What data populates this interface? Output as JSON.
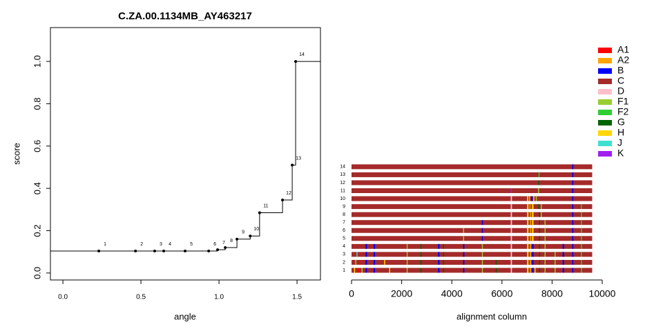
{
  "chart_data": [
    {
      "type": "step",
      "title": "C.ZA.00.1134MB_AY463217",
      "x_label": "angle",
      "y_label": "score",
      "x": [
        0.23,
        0.465,
        0.588,
        0.646,
        0.783,
        0.934,
        0.991,
        1.04,
        1.115,
        1.2,
        1.26,
        1.407,
        1.469,
        1.491
      ],
      "values": [
        0.104,
        0.104,
        0.104,
        0.104,
        0.104,
        0.104,
        0.11,
        0.12,
        0.16,
        0.175,
        0.285,
        0.345,
        0.51,
        1.0
      ],
      "point_labels": [
        "1",
        "2",
        "3",
        "4",
        "5",
        "6",
        "7",
        "8",
        "9",
        "10",
        "11",
        "12",
        "13",
        "14"
      ],
      "color": "#000000",
      "xlim": [
        -0.08,
        1.65
      ],
      "ylim": [
        -0.033,
        1.16
      ],
      "xticks": [
        {
          "value": 0,
          "label": "0.0"
        },
        0.5,
        {
          "value": 1,
          "label": "1.0"
        },
        1.5
      ],
      "yticks": [
        {
          "value": 0,
          "label": "0.0"
        },
        0.2,
        0.4,
        0.6,
        0.8,
        {
          "value": 1,
          "label": "1.0"
        }
      ]
    },
    {
      "type": "alignment",
      "x_label": "alignment column",
      "xlim": [
        0,
        10000
      ],
      "xticks": [
        0,
        2000,
        4000,
        6000,
        8000,
        10000
      ],
      "extent": [
        0,
        9600
      ],
      "base": "C",
      "legend": [
        {
          "name": "A1",
          "color": "#ff0000"
        },
        {
          "name": "A2",
          "color": "#ffa500"
        },
        {
          "name": "B",
          "color": "#0000ff"
        },
        {
          "name": "C",
          "color": "#a52a2a"
        },
        {
          "name": "D",
          "color": "#ffc0cb"
        },
        {
          "name": "F1",
          "color": "#9acd32"
        },
        {
          "name": "F2",
          "color": "#32cd32"
        },
        {
          "name": "G",
          "color": "#006400"
        },
        {
          "name": "H",
          "color": "#ffd700"
        },
        {
          "name": "J",
          "color": "#40e0d0"
        },
        {
          "name": "K",
          "color": "#a020f0"
        }
      ],
      "rows": [
        {
          "label": "1",
          "segments": [
            [
              100,
              140,
              "H"
            ],
            [
              250,
              290,
              "A1"
            ],
            [
              400,
              440,
              "F1"
            ],
            [
              560,
              620,
              "B"
            ],
            [
              880,
              940,
              "B"
            ],
            [
              1500,
              1540,
              "H"
            ],
            [
              2200,
              2240,
              "F1"
            ],
            [
              2750,
              2790,
              "G"
            ],
            [
              3450,
              3510,
              "B"
            ],
            [
              3650,
              3690,
              "G"
            ],
            [
              4450,
              4500,
              "B"
            ],
            [
              5200,
              5240,
              "F1"
            ],
            [
              5750,
              5790,
              "G"
            ],
            [
              6350,
              6400,
              "D"
            ],
            [
              7000,
              7060,
              "H"
            ],
            [
              7120,
              7160,
              "A2"
            ],
            [
              7200,
              7260,
              "B"
            ],
            [
              7300,
              7340,
              "H"
            ],
            [
              7480,
              7520,
              "G"
            ],
            [
              7700,
              7740,
              "F1"
            ],
            [
              8100,
              8140,
              "F1"
            ],
            [
              8420,
              8480,
              "B"
            ],
            [
              8800,
              8850,
              "B"
            ],
            [
              9150,
              9190,
              "F2"
            ]
          ]
        },
        {
          "label": "2",
          "segments": [
            [
              150,
              190,
              "F1"
            ],
            [
              300,
              340,
              "A1"
            ],
            [
              560,
              620,
              "B"
            ],
            [
              880,
              940,
              "B"
            ],
            [
              1300,
              1340,
              "H"
            ],
            [
              2200,
              2240,
              "F1"
            ],
            [
              2750,
              2790,
              "G"
            ],
            [
              3450,
              3510,
              "B"
            ],
            [
              3650,
              3690,
              "G"
            ],
            [
              4450,
              4500,
              "B"
            ],
            [
              5200,
              5240,
              "F1"
            ],
            [
              5750,
              5790,
              "G"
            ],
            [
              6350,
              6400,
              "D"
            ],
            [
              7000,
              7060,
              "H"
            ],
            [
              7120,
              7160,
              "A2"
            ],
            [
              7200,
              7260,
              "B"
            ],
            [
              7480,
              7520,
              "G"
            ],
            [
              7700,
              7740,
              "F1"
            ],
            [
              8100,
              8140,
              "F1"
            ],
            [
              8420,
              8480,
              "B"
            ],
            [
              8800,
              8850,
              "B"
            ],
            [
              9150,
              9190,
              "F2"
            ]
          ]
        },
        {
          "label": "3",
          "segments": [
            [
              200,
              240,
              "J"
            ],
            [
              560,
              620,
              "B"
            ],
            [
              880,
              940,
              "B"
            ],
            [
              2200,
              2240,
              "F1"
            ],
            [
              2750,
              2790,
              "G"
            ],
            [
              3450,
              3510,
              "B"
            ],
            [
              3650,
              3690,
              "G"
            ],
            [
              4450,
              4500,
              "B"
            ],
            [
              5200,
              5240,
              "F1"
            ],
            [
              6350,
              6400,
              "D"
            ],
            [
              7000,
              7060,
              "H"
            ],
            [
              7120,
              7160,
              "A2"
            ],
            [
              7200,
              7260,
              "B"
            ],
            [
              7480,
              7520,
              "G"
            ],
            [
              7700,
              7740,
              "F1"
            ],
            [
              8100,
              8140,
              "F1"
            ],
            [
              8420,
              8480,
              "B"
            ],
            [
              8800,
              8850,
              "B"
            ],
            [
              9150,
              9190,
              "F2"
            ]
          ]
        },
        {
          "label": "4",
          "segments": [
            [
              560,
              620,
              "B"
            ],
            [
              880,
              940,
              "B"
            ],
            [
              2200,
              2240,
              "F1"
            ],
            [
              2750,
              2790,
              "G"
            ],
            [
              3450,
              3510,
              "B"
            ],
            [
              3650,
              3690,
              "G"
            ],
            [
              4450,
              4500,
              "B"
            ],
            [
              5200,
              5240,
              "F1"
            ],
            [
              6350,
              6400,
              "D"
            ],
            [
              7000,
              7060,
              "H"
            ],
            [
              7120,
              7160,
              "A2"
            ],
            [
              7200,
              7260,
              "B"
            ],
            [
              7480,
              7520,
              "G"
            ],
            [
              7700,
              7740,
              "F1"
            ],
            [
              8420,
              8480,
              "B"
            ],
            [
              8800,
              8850,
              "B"
            ],
            [
              9150,
              9190,
              "F2"
            ]
          ]
        },
        {
          "label": "5",
          "segments": [
            [
              4450,
              4490,
              "F1"
            ],
            [
              5200,
              5240,
              "B"
            ],
            [
              6350,
              6400,
              "D"
            ],
            [
              7000,
              7060,
              "H"
            ],
            [
              7120,
              7160,
              "A2"
            ],
            [
              7200,
              7260,
              "H"
            ],
            [
              7480,
              7520,
              "G"
            ],
            [
              7700,
              7740,
              "F1"
            ],
            [
              8800,
              8850,
              "B"
            ],
            [
              9150,
              9190,
              "F2"
            ]
          ]
        },
        {
          "label": "6",
          "segments": [
            [
              4450,
              4490,
              "F1"
            ],
            [
              5200,
              5240,
              "B"
            ],
            [
              6350,
              6400,
              "D"
            ],
            [
              7000,
              7060,
              "H"
            ],
            [
              7120,
              7160,
              "A2"
            ],
            [
              7200,
              7260,
              "H"
            ],
            [
              7480,
              7520,
              "G"
            ],
            [
              7700,
              7740,
              "F1"
            ],
            [
              8800,
              8850,
              "B"
            ],
            [
              9150,
              9190,
              "F2"
            ]
          ]
        },
        {
          "label": "7",
          "segments": [
            [
              5200,
              5240,
              "B"
            ],
            [
              6350,
              6400,
              "D"
            ],
            [
              7000,
              7060,
              "H"
            ],
            [
              7120,
              7160,
              "A2"
            ],
            [
              7200,
              7260,
              "H"
            ],
            [
              7480,
              7520,
              "G"
            ],
            [
              7700,
              7740,
              "F1"
            ],
            [
              8800,
              8850,
              "B"
            ],
            [
              9150,
              9190,
              "F2"
            ]
          ]
        },
        {
          "label": "8",
          "segments": [
            [
              6350,
              6400,
              "D"
            ],
            [
              7000,
              7060,
              "H"
            ],
            [
              7120,
              7160,
              "A2"
            ],
            [
              7200,
              7260,
              "H"
            ],
            [
              7480,
              7520,
              "G"
            ],
            [
              7550,
              7590,
              "F1"
            ],
            [
              8800,
              8850,
              "B"
            ],
            [
              9150,
              9190,
              "F2"
            ]
          ]
        },
        {
          "label": "9",
          "segments": [
            [
              6350,
              6400,
              "D"
            ],
            [
              7000,
              7060,
              "H"
            ],
            [
              7100,
              7140,
              "A2"
            ],
            [
              7200,
              7260,
              "H"
            ],
            [
              7450,
              7490,
              "G"
            ],
            [
              7550,
              7590,
              "F1"
            ],
            [
              8800,
              8850,
              "B"
            ],
            [
              9150,
              9190,
              "F2"
            ]
          ]
        },
        {
          "label": "10",
          "segments": [
            [
              6350,
              6400,
              "D"
            ],
            [
              7000,
              7050,
              "H"
            ],
            [
              7080,
              7120,
              "A2"
            ],
            [
              7160,
              7220,
              "B"
            ],
            [
              7250,
              7290,
              "H"
            ],
            [
              7350,
              7390,
              "F1"
            ],
            [
              8800,
              8850,
              "B"
            ]
          ]
        },
        {
          "label": "11",
          "segments": [
            [
              6350,
              6390,
              "K"
            ],
            [
              7440,
              7480,
              "F1"
            ],
            [
              8800,
              8850,
              "B"
            ]
          ]
        },
        {
          "label": "12",
          "segments": [
            [
              7450,
              7490,
              "G"
            ],
            [
              8800,
              8850,
              "B"
            ]
          ]
        },
        {
          "label": "13",
          "segments": [
            [
              7460,
              7500,
              "F2"
            ],
            [
              8800,
              8850,
              "B"
            ]
          ]
        },
        {
          "label": "14",
          "segments": [
            [
              8800,
              8850,
              "B"
            ]
          ]
        }
      ]
    }
  ]
}
